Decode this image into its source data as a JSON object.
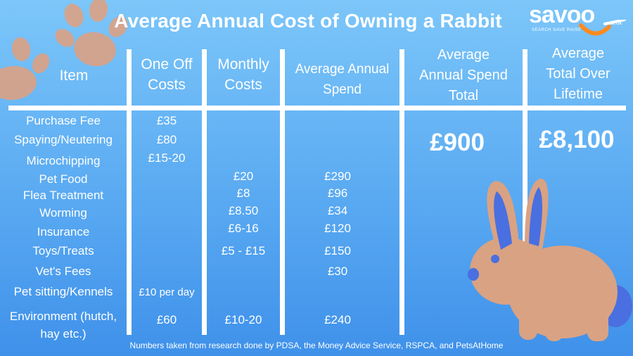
{
  "title": "Average Annual Cost of Owning a Rabbit",
  "logo": {
    "name": "savoo",
    "domain": ".co.uk",
    "tagline": "SEARCH SAVE RAISE"
  },
  "headers": [
    "Item",
    [
      "One Off",
      "Costs"
    ],
    [
      "Monthly",
      "Costs"
    ],
    [
      "Average Annual",
      "Spend"
    ],
    [
      "Average",
      "Annual Spend",
      "Total"
    ],
    [
      "Average",
      "Total Over",
      "Lifetime"
    ]
  ],
  "rows": [
    {
      "item": "Purchase Fee",
      "one_off": "£35",
      "monthly": "",
      "annual": ""
    },
    {
      "item": "Spaying/Neutering",
      "one_off": "£80",
      "monthly": "",
      "annual": ""
    },
    {
      "item": "Microchipping",
      "one_off": "£15-20",
      "monthly": "",
      "annual": ""
    },
    {
      "item": "Pet Food",
      "one_off": "",
      "monthly": "£20",
      "annual": "£290"
    },
    {
      "item": "Flea Treatment",
      "one_off": "",
      "monthly": "£8",
      "annual": "£96"
    },
    {
      "item": "Worming",
      "one_off": "",
      "monthly": "£8.50",
      "annual": "£34"
    },
    {
      "item": "Insurance",
      "one_off": "",
      "monthly": "£6-16",
      "annual": "£120"
    },
    {
      "item": "Toys/Treats",
      "one_off": "",
      "monthly": "£5 - £15",
      "annual": "£150"
    },
    {
      "item": "Vet's Fees",
      "one_off": "",
      "monthly": "",
      "annual": "£30"
    },
    {
      "item": "Pet sitting/Kennels",
      "one_off": "£10 per day",
      "monthly": "",
      "annual": ""
    },
    {
      "item": [
        "Environment (hutch,",
        "hay etc.)"
      ],
      "one_off": "£60",
      "monthly": "£10-20",
      "annual": "£240"
    }
  ],
  "totals": {
    "annual": "£900",
    "lifetime": "£8,100"
  },
  "footer": "Numbers taken from research done by PDSA, the Money Advice Service,  RSPCA,  and PetsAtHome",
  "colors": {
    "background_top": "#7cc6f9",
    "background_bottom": "#3f91ea",
    "accent": "#ff8a1e",
    "rabbit": "#d9a283",
    "rabbit_detail": "#4a6fe0"
  }
}
